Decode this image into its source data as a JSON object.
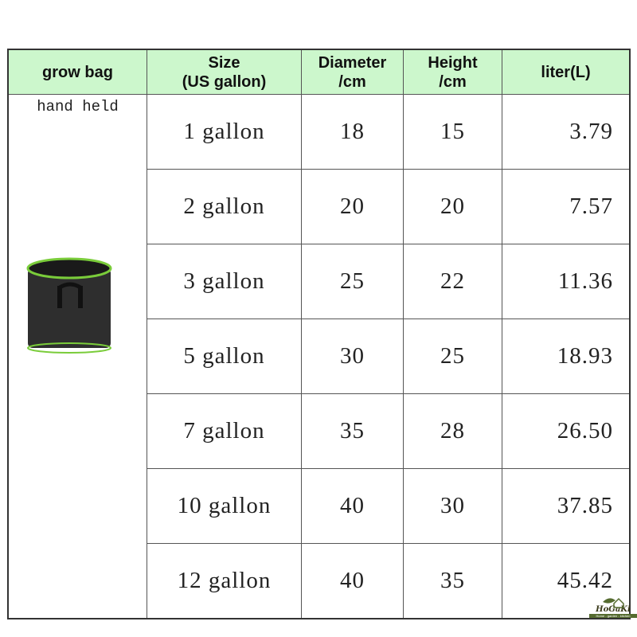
{
  "headers": [
    "grow bag",
    "Size\n(US gallon)",
    "Diameter\n/cm",
    "Height\n/cm",
    "liter(L)"
  ],
  "bag_label": "hand held",
  "rows": [
    {
      "size": "1 gallon",
      "diameter": "18",
      "height": "15",
      "liter": "3.79"
    },
    {
      "size": "2 gallon",
      "diameter": "20",
      "height": "20",
      "liter": "7.57"
    },
    {
      "size": "3 gallon",
      "diameter": "25",
      "height": "22",
      "liter": "11.36"
    },
    {
      "size": "5 gallon",
      "diameter": "30",
      "height": "25",
      "liter": "18.93"
    },
    {
      "size": "7 gallon",
      "diameter": "35",
      "height": "28",
      "liter": "26.50"
    },
    {
      "size": "10 gallon",
      "diameter": "40",
      "height": "30",
      "liter": "37.85"
    },
    {
      "size": "12 gallon",
      "diameter": "40",
      "height": "35",
      "liter": "45.42"
    }
  ],
  "logo": {
    "name": "HoGaKi",
    "tagline": "Home - garden - kitchen"
  },
  "colors": {
    "header_bg": "#ccf7cc",
    "bag_body": "#2e2e2e",
    "bag_trim": "#7acc3a"
  }
}
